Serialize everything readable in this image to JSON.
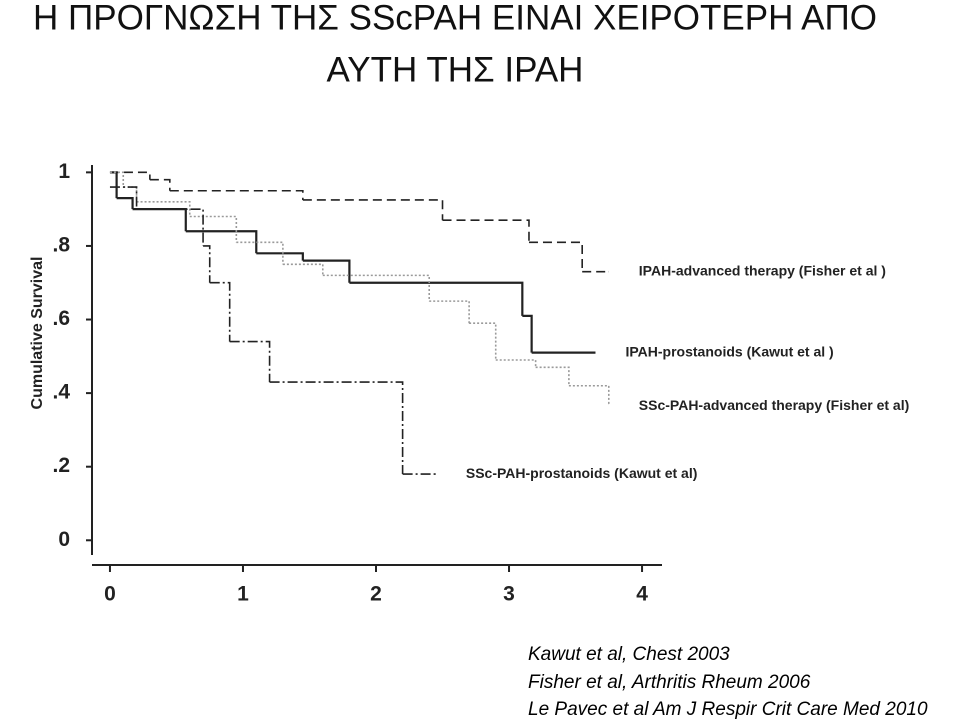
{
  "title_lines": [
    "Η ΠΡΟΓΝΩΣΗ ΤΗΣ SScPAH ΕΙΝΑΙ ΧΕΙΡΟΤΕΡΗ ΑΠΟ",
    "ΑΥΤΗ ΤΗΣ IPAH"
  ],
  "references": [
    "Kawut et al, Chest 2003",
    "Fisher et al, Arthritis Rheum 2006",
    "Le  Pavec et al Am J Respir Crit Care Med 2010"
  ],
  "chart_data": {
    "type": "step",
    "y_label": "Cumulative Survival",
    "xlim": [
      -0.135,
      4.15
    ],
    "ylim": [
      -0.04,
      1.02
    ],
    "xticks": [
      0,
      1,
      2,
      3,
      4
    ],
    "yticks": [
      0,
      {
        "value": 0.2,
        "label": ".2"
      },
      {
        "value": 0.4,
        "label": ".4"
      },
      {
        "value": 0.6,
        "label": ".6"
      },
      {
        "value": 0.8,
        "label": ".8"
      },
      1
    ],
    "series": [
      {
        "name": "IPAH-advanced therapy (Fisher et al )",
        "color": "#222222",
        "dash": "9 5",
        "x": [
          0,
          0.3,
          0.45,
          1.45,
          2.5,
          3.15,
          3.55,
          3.75
        ],
        "values": [
          1,
          0.98,
          0.95,
          0.925,
          0.87,
          0.81,
          0.73,
          0.73
        ]
      },
      {
        "name": "IPAH-prostanoids (Kawut et al )",
        "color": "#222222",
        "dash": "none",
        "x": [
          0,
          0.05,
          0.17,
          0.57,
          1.1,
          1.45,
          1.8,
          3.1,
          3.17,
          3.65
        ],
        "values": [
          1,
          0.93,
          0.9,
          0.84,
          0.78,
          0.76,
          0.7,
          0.61,
          0.51,
          0.51
        ]
      },
      {
        "name": "SSc-PAH-advanced therapy (Fisher et al)",
        "color": "#9a9a9a",
        "dash": "2 2",
        "x": [
          0,
          0.1,
          0.2,
          0.6,
          0.95,
          1.3,
          1.6,
          2.4,
          2.7,
          2.9,
          3.2,
          3.45,
          3.75
        ],
        "values": [
          1,
          0.96,
          0.92,
          0.88,
          0.81,
          0.75,
          0.72,
          0.65,
          0.59,
          0.49,
          0.47,
          0.42,
          0.37
        ]
      },
      {
        "name": "SSc-PAH-prostanoids (Kawut et al)",
        "color": "#222222",
        "dash": "10 3 2 3",
        "x": [
          0,
          0.2,
          0.7,
          0.75,
          0.9,
          1.2,
          2.2,
          2.45
        ],
        "values": [
          0.96,
          0.9,
          0.8,
          0.7,
          0.54,
          0.43,
          0.18,
          0.18
        ]
      }
    ]
  }
}
